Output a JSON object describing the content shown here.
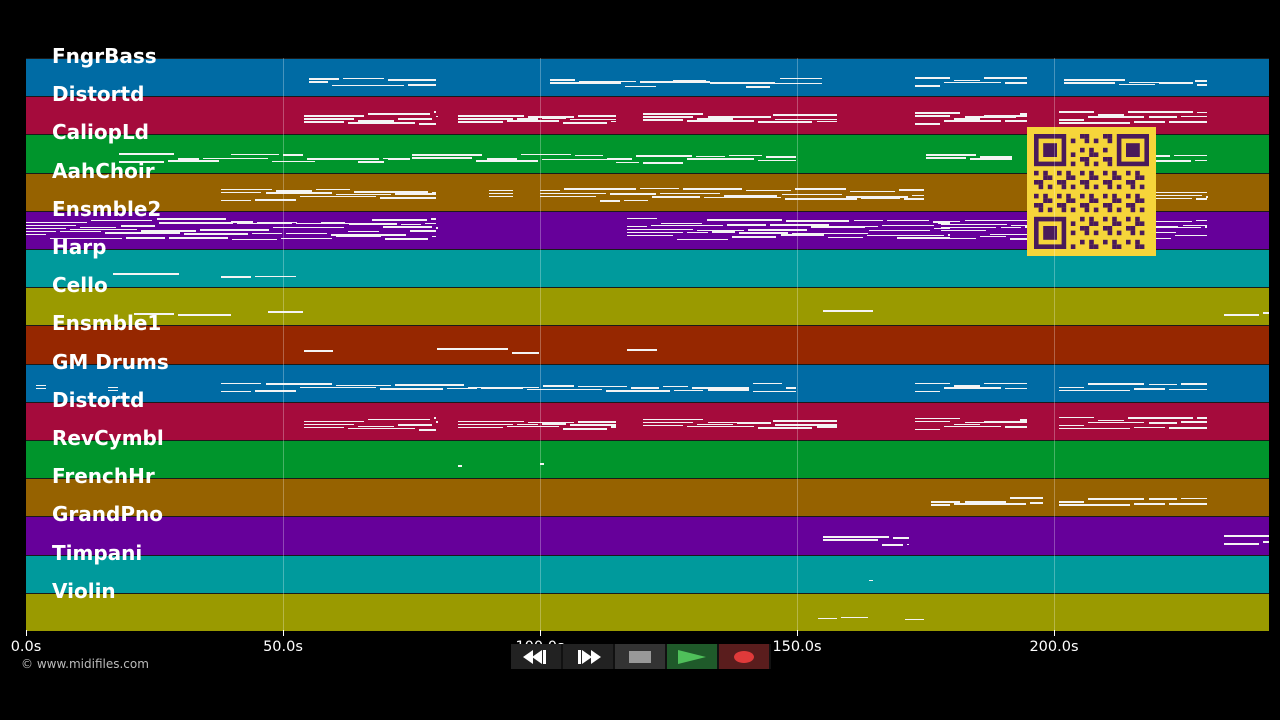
{
  "tracks": [
    {
      "name": "FngrBass",
      "color": "#006ba4"
    },
    {
      "name": "Distortd",
      "color": "#a50b3c"
    },
    {
      "name": "CaliopLd",
      "color": "#00952c"
    },
    {
      "name": "AahChoir",
      "color": "#966200"
    },
    {
      "name": "Ensmble2",
      "color": "#66009a"
    },
    {
      "name": "Harp",
      "color": "#009a9c"
    },
    {
      "name": "Cello",
      "color": "#9a9a00"
    },
    {
      "name": "Ensmble1",
      "color": "#962700"
    },
    {
      "name": "GM Drums",
      "color": "#006ba4"
    },
    {
      "name": "Distortd",
      "color": "#a50b3c"
    },
    {
      "name": "RevCymbl",
      "color": "#00952c"
    },
    {
      "name": "FrenchHr",
      "color": "#966200"
    },
    {
      "name": "GrandPno",
      "color": "#66009a"
    },
    {
      "name": "Timpani",
      "color": "#009a9c"
    },
    {
      "name": "Violin",
      "color": "#9a9a00"
    }
  ],
  "timeline": {
    "ticks": [
      "0.0s",
      "50.0s",
      "100.0s",
      "150.0s",
      "200.0s"
    ],
    "tick_seconds": [
      0,
      50,
      100,
      150,
      200
    ],
    "max_seconds": 242
  },
  "copyright": "© www.midifiles.com",
  "controls": [
    {
      "name": "rewind-button",
      "icon": "rewind-icon",
      "color": "#222"
    },
    {
      "name": "fast-forward-button",
      "icon": "fast-forward-icon",
      "color": "#222"
    },
    {
      "name": "stop-button",
      "icon": "stop-icon",
      "color": "#333"
    },
    {
      "name": "play-button",
      "icon": "play-icon",
      "color": "#1f5a2a"
    },
    {
      "name": "record-button",
      "icon": "record-icon",
      "color": "#5a1d1d"
    }
  ],
  "qr_code": {
    "color_bg": "#f6d53a",
    "color_fg": "#4a1a5a"
  }
}
